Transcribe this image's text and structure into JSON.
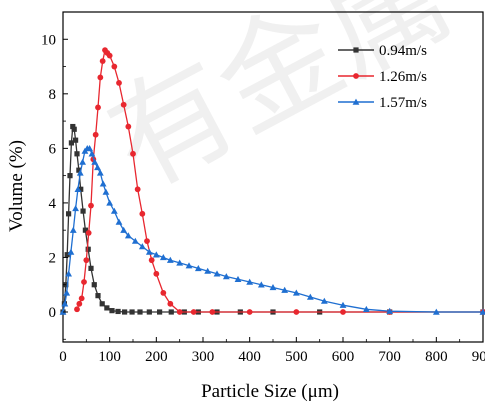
{
  "watermark": "有金属",
  "chart_data": {
    "type": "line",
    "xlabel": "Particle Size (μm)",
    "ylabel": "Volume (%)",
    "xlim": [
      0,
      900
    ],
    "ylim": [
      -1.1,
      11
    ],
    "xticks": [
      0,
      100,
      200,
      300,
      400,
      500,
      600,
      700,
      800,
      900
    ],
    "yticks": [
      0,
      2,
      4,
      6,
      8,
      10
    ],
    "grid": false,
    "legend_position": "top-right",
    "series": [
      {
        "name": "0.94m/s",
        "color": "#333333",
        "marker": "square",
        "x": [
          0,
          3,
          6,
          9,
          12,
          15,
          18,
          21,
          24,
          27,
          30,
          34,
          38,
          43,
          48,
          54,
          60,
          67,
          75,
          84,
          94,
          105,
          118,
          132,
          148,
          165,
          185,
          207,
          232,
          260,
          290,
          330,
          380,
          450,
          550,
          700,
          900
        ],
        "y": [
          0,
          0.3,
          1.0,
          2.1,
          3.6,
          5.0,
          6.2,
          6.8,
          6.7,
          6.3,
          5.8,
          5.2,
          4.5,
          3.7,
          3.0,
          2.3,
          1.6,
          1.0,
          0.6,
          0.3,
          0.15,
          0.05,
          0.02,
          0,
          0,
          0,
          0,
          0,
          0,
          0,
          0,
          0,
          0,
          0,
          0,
          0,
          0
        ]
      },
      {
        "name": "1.26m/s",
        "color": "#e8272f",
        "marker": "circle",
        "x": [
          30,
          35,
          40,
          45,
          50,
          55,
          60,
          65,
          70,
          75,
          80,
          85,
          90,
          95,
          100,
          110,
          120,
          130,
          140,
          150,
          160,
          170,
          180,
          190,
          200,
          215,
          230,
          250,
          280,
          320,
          400,
          500,
          600,
          700,
          900
        ],
        "y": [
          0.1,
          0.3,
          0.5,
          1.1,
          1.9,
          2.9,
          3.9,
          5.6,
          6.5,
          7.5,
          8.6,
          9.2,
          9.6,
          9.5,
          9.4,
          9.0,
          8.4,
          7.6,
          6.8,
          5.8,
          4.5,
          3.6,
          2.6,
          1.9,
          1.4,
          0.7,
          0.3,
          0,
          0,
          0,
          0,
          0,
          0,
          0,
          0
        ]
      },
      {
        "name": "1.57m/s",
        "color": "#1f6fd1",
        "marker": "triangle",
        "x": [
          0,
          4,
          8,
          12,
          17,
          22,
          27,
          32,
          37,
          42,
          47,
          52,
          57,
          62,
          68,
          74,
          80,
          86,
          92,
          100,
          110,
          120,
          130,
          140,
          155,
          170,
          185,
          200,
          215,
          230,
          250,
          270,
          290,
          310,
          330,
          350,
          375,
          400,
          425,
          450,
          475,
          500,
          530,
          560,
          600,
          650,
          700,
          800,
          900
        ],
        "y": [
          0,
          0.3,
          0.7,
          1.4,
          2.2,
          3.0,
          3.8,
          4.5,
          5.1,
          5.5,
          5.9,
          6.0,
          6.0,
          5.8,
          5.5,
          5.3,
          5.1,
          4.7,
          4.4,
          4.0,
          3.7,
          3.3,
          3.0,
          2.8,
          2.6,
          2.4,
          2.2,
          2.1,
          2.0,
          1.9,
          1.8,
          1.7,
          1.6,
          1.5,
          1.4,
          1.3,
          1.2,
          1.1,
          1.0,
          0.9,
          0.8,
          0.7,
          0.55,
          0.4,
          0.25,
          0.1,
          0.03,
          0,
          0
        ]
      }
    ]
  }
}
